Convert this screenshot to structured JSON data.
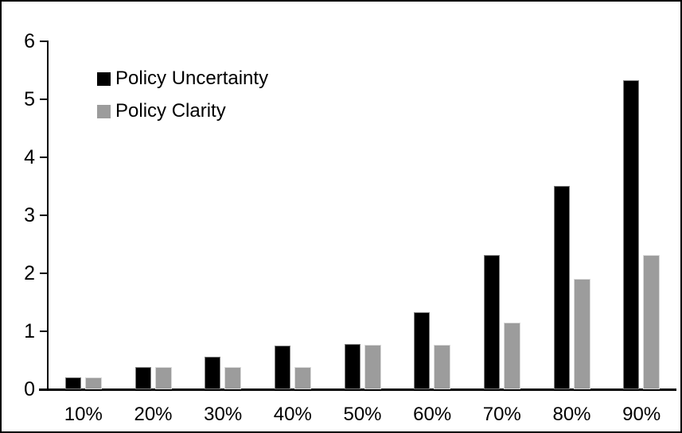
{
  "chart_data": {
    "type": "bar",
    "title": "",
    "xlabel": "",
    "ylabel": "",
    "categories": [
      "10%",
      "20%",
      "30%",
      "40%",
      "50%",
      "60%",
      "70%",
      "80%",
      "90%"
    ],
    "series": [
      {
        "name": "Policy Uncertainty",
        "color": "#000000",
        "values": [
          0.2,
          0.38,
          0.56,
          0.76,
          0.78,
          1.33,
          2.31,
          3.5,
          5.33
        ]
      },
      {
        "name": "Policy Clarity",
        "color": "#9c9c9c",
        "values": [
          0.2,
          0.38,
          0.38,
          0.38,
          0.77,
          0.77,
          1.15,
          1.9,
          2.31
        ]
      }
    ],
    "ylim": [
      0,
      6
    ],
    "yticks": [
      0,
      1,
      2,
      3,
      4,
      5,
      6
    ],
    "grid": false,
    "legend_position": "top-left",
    "background": "#ffffff",
    "frame_border_color": "#000000"
  }
}
